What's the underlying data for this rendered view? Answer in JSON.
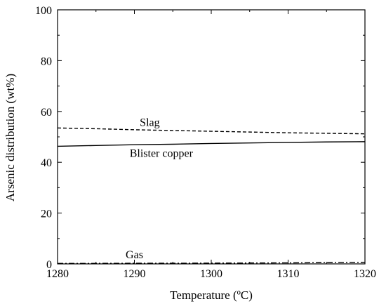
{
  "chart_data": {
    "type": "line",
    "xlabel": "Temperature (ºC)",
    "ylabel": "Arsenic distribution (wt%)",
    "xlim": [
      1280,
      1320
    ],
    "ylim": [
      0,
      100
    ],
    "x_ticks": [
      1280,
      1290,
      1300,
      1310,
      1320
    ],
    "y_ticks": [
      0,
      20,
      40,
      60,
      80,
      100
    ],
    "grid": false,
    "series": [
      {
        "name": "Slag",
        "style": "dashed",
        "x": [
          1280,
          1285,
          1290,
          1295,
          1300,
          1305,
          1310,
          1315,
          1320
        ],
        "y": [
          53.5,
          53.2,
          52.8,
          52.5,
          52.2,
          51.9,
          51.6,
          51.4,
          51.2
        ]
      },
      {
        "name": "Blister copper",
        "style": "solid",
        "x": [
          1280,
          1285,
          1290,
          1295,
          1300,
          1305,
          1310,
          1315,
          1320
        ],
        "y": [
          46.3,
          46.6,
          46.9,
          47.1,
          47.4,
          47.6,
          47.8,
          48.0,
          48.1
        ]
      },
      {
        "name": "Gas",
        "style": "dashdot",
        "x": [
          1280,
          1285,
          1290,
          1295,
          1300,
          1305,
          1310,
          1315,
          1320
        ],
        "y": [
          0.2,
          0.2,
          0.25,
          0.25,
          0.3,
          0.35,
          0.4,
          0.5,
          0.6
        ]
      }
    ]
  }
}
